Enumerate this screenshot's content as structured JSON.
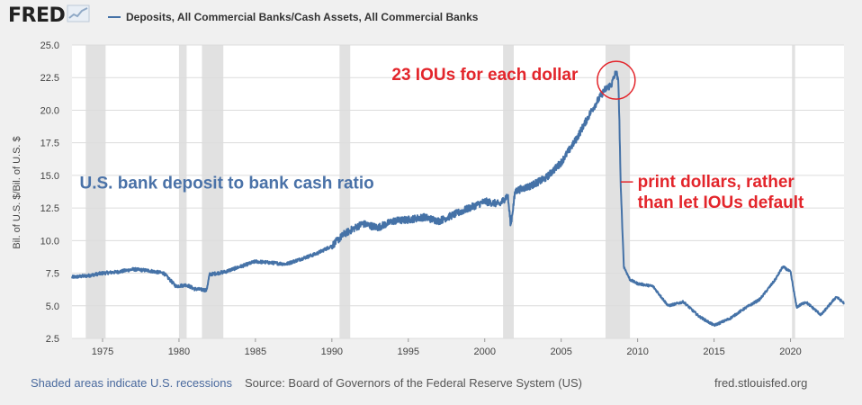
{
  "header": {
    "logo_text": "FRED",
    "logo_icon": "line-chart-icon",
    "series_legend": "Deposits, All Commercial Banks/Cash Assets, All Commercial Banks"
  },
  "footer": {
    "recession_note": "Shaded areas indicate U.S. recessions",
    "source": "Source: Board of Governors of the Federal Reserve System (US)",
    "site": "fred.stlouisfed.org"
  },
  "annotations": {
    "peak_label": "23 IOUs for each dollar",
    "ratio_label": "U.S. bank deposit to bank cash ratio",
    "print_line1": "print dollars, rather",
    "print_line2": "than let IOUs default"
  },
  "colors": {
    "series": "#4572a7",
    "recession": "#e1e1e1",
    "annotation_red": "#e3252b",
    "annotation_blue": "#4a72a8"
  },
  "chart_data": {
    "type": "line",
    "title": "",
    "xlabel": "",
    "ylabel": "Bil. of U.S. $/Bil. of U.S. $",
    "xlim": [
      1973.0,
      2023.5
    ],
    "ylim": [
      2.5,
      25.0
    ],
    "x_ticks": [
      1975,
      1980,
      1985,
      1990,
      1995,
      2000,
      2005,
      2010,
      2015,
      2020
    ],
    "y_ticks": [
      2.5,
      5.0,
      7.5,
      10.0,
      12.5,
      15.0,
      17.5,
      20.0,
      22.5,
      25.0
    ],
    "grid": true,
    "recessions": [
      [
        1973.9,
        1975.2
      ],
      [
        1980.0,
        1980.5
      ],
      [
        1981.5,
        1982.9
      ],
      [
        1990.5,
        1991.2
      ],
      [
        2001.2,
        2001.9
      ],
      [
        2007.9,
        2009.5
      ],
      [
        2020.1,
        2020.3
      ]
    ],
    "series": [
      {
        "name": "Deposits, All Commercial Banks/Cash Assets, All Commercial Banks",
        "x": [
          1973.0,
          1974.0,
          1975.0,
          1976.0,
          1977.0,
          1978.0,
          1979.0,
          1979.8,
          1980.5,
          1981.0,
          1981.8,
          1982.0,
          1983.0,
          1984.0,
          1985.0,
          1986.0,
          1987.0,
          1988.0,
          1989.0,
          1990.0,
          1990.8,
          1992.0,
          1993.0,
          1994.0,
          1995.0,
          1996.0,
          1997.0,
          1998.0,
          1999.0,
          2000.0,
          2001.0,
          2001.5,
          2001.7,
          2002.0,
          2003.0,
          2004.0,
          2005.0,
          2006.0,
          2007.0,
          2007.8,
          2008.3,
          2008.6,
          2008.75,
          2008.9,
          2009.1,
          2009.5,
          2010.0,
          2011.0,
          2012.0,
          2013.0,
          2014.0,
          2015.0,
          2016.0,
          2017.0,
          2018.0,
          2019.0,
          2019.5,
          2020.0,
          2020.4,
          2021.0,
          2022.0,
          2023.0,
          2023.5
        ],
        "values": [
          7.2,
          7.3,
          7.5,
          7.6,
          7.8,
          7.7,
          7.5,
          6.5,
          6.6,
          6.3,
          6.2,
          7.4,
          7.6,
          8.0,
          8.4,
          8.3,
          8.2,
          8.6,
          9.0,
          9.6,
          10.5,
          11.3,
          11.0,
          11.5,
          11.6,
          11.8,
          11.5,
          12.0,
          12.5,
          13.0,
          12.8,
          13.5,
          11.2,
          13.8,
          14.2,
          14.8,
          16.0,
          17.8,
          20.0,
          21.5,
          22.0,
          23.0,
          22.0,
          14.0,
          8.0,
          7.0,
          6.7,
          6.5,
          5.0,
          5.3,
          4.2,
          3.5,
          4.0,
          4.8,
          5.5,
          7.0,
          8.0,
          7.6,
          4.9,
          5.3,
          4.3,
          5.7,
          5.2
        ]
      }
    ]
  }
}
